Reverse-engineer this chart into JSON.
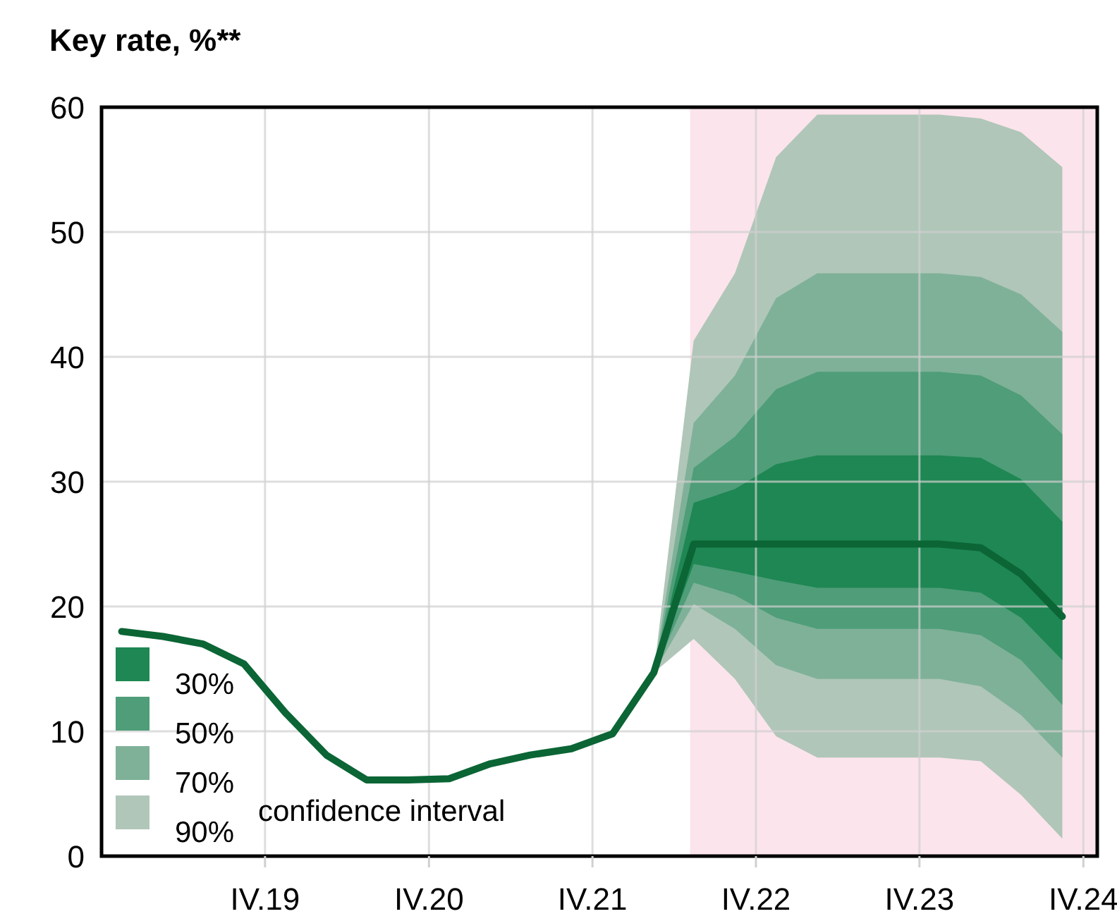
{
  "chart_data": {
    "type": "line",
    "title": "Key rate, %**",
    "legend_title": "confidence interval",
    "legend": "bottom left",
    "grid": true,
    "xlim": [
      "2018-10-01",
      "2024-11-01"
    ],
    "xticks": [
      {
        "value": "2019-10-01",
        "label": "IV.19"
      },
      {
        "value": "2020-10-01",
        "label": "IV.20"
      },
      {
        "value": "2021-10-01",
        "label": "IV.21"
      },
      {
        "value": "2022-10-01",
        "label": "IV.22"
      },
      {
        "value": "2023-10-01",
        "label": "IV.23"
      },
      {
        "value": "2024-10-01",
        "label": "IV.24"
      }
    ],
    "ylim": [
      0,
      60
    ],
    "yticks": [
      0,
      10,
      20,
      30,
      40,
      50,
      60
    ],
    "bands": [
      {
        "axis": "x",
        "from": "2022-05-07",
        "to": "2024-11-01",
        "color": "#fce4ec"
      }
    ],
    "series": [
      {
        "name": "90%",
        "type": "area",
        "color": "#b0c6b9",
        "x": [
          "2022-02-15",
          "2022-05-15",
          "2022-08-15",
          "2022-11-15",
          "2023-02-15",
          "2023-05-15",
          "2023-08-15",
          "2023-11-15",
          "2024-02-15",
          "2024-05-15",
          "2024-08-15"
        ],
        "values": [
          null,
          null,
          null,
          null,
          null,
          null,
          null,
          null,
          null,
          null,
          null
        ],
        "lower": [
          14.7,
          17.4,
          14.2,
          9.6,
          7.9,
          7.9,
          7.9,
          7.9,
          7.6,
          4.9,
          1.4
        ],
        "upper": [
          14.7,
          41.3,
          46.7,
          56.0,
          59.4,
          59.4,
          59.4,
          59.4,
          59.1,
          58.0,
          55.2
        ]
      },
      {
        "name": "70%",
        "type": "area",
        "color": "#7fb198",
        "x": [
          "2022-02-15",
          "2022-05-15",
          "2022-08-15",
          "2022-11-15",
          "2023-02-15",
          "2023-05-15",
          "2023-08-15",
          "2023-11-15",
          "2024-02-15",
          "2024-05-15",
          "2024-08-15"
        ],
        "values": [
          null,
          null,
          null,
          null,
          null,
          null,
          null,
          null,
          null,
          null,
          null
        ],
        "lower": [
          14.7,
          20.2,
          18.2,
          15.3,
          14.2,
          14.2,
          14.2,
          14.2,
          13.6,
          11.3,
          7.9
        ],
        "upper": [
          14.7,
          34.7,
          38.5,
          44.7,
          46.7,
          46.7,
          46.7,
          46.7,
          46.4,
          45.0,
          42.0
        ]
      },
      {
        "name": "50%",
        "type": "area",
        "color": "#4f9d79",
        "x": [
          "2022-02-15",
          "2022-05-15",
          "2022-08-15",
          "2022-11-15",
          "2023-02-15",
          "2023-05-15",
          "2023-08-15",
          "2023-11-15",
          "2024-02-15",
          "2024-05-15",
          "2024-08-15"
        ],
        "values": [
          null,
          null,
          null,
          null,
          null,
          null,
          null,
          null,
          null,
          null,
          null
        ],
        "lower": [
          14.7,
          21.9,
          20.9,
          19.1,
          18.2,
          18.2,
          18.2,
          18.2,
          17.7,
          15.7,
          12.1
        ],
        "upper": [
          14.7,
          31.1,
          33.6,
          37.4,
          38.8,
          38.8,
          38.8,
          38.8,
          38.5,
          36.9,
          33.8
        ]
      },
      {
        "name": "30%",
        "type": "area",
        "color": "#1e8753",
        "x": [
          "2022-02-15",
          "2022-05-15",
          "2022-08-15",
          "2022-11-15",
          "2023-02-15",
          "2023-05-15",
          "2023-08-15",
          "2023-11-15",
          "2024-02-15",
          "2024-05-15",
          "2024-08-15"
        ],
        "values": [
          null,
          null,
          null,
          null,
          null,
          null,
          null,
          null,
          null,
          null,
          null
        ],
        "lower": [
          14.7,
          23.4,
          22.8,
          22.1,
          21.5,
          21.5,
          21.5,
          21.5,
          21.1,
          19.1,
          15.7
        ],
        "upper": [
          14.7,
          28.3,
          29.4,
          31.4,
          32.1,
          32.1,
          32.1,
          32.1,
          31.9,
          30.2,
          26.8
        ]
      },
      {
        "type": "line",
        "color": "#0b6535",
        "x": [
          "2018-11-15",
          "2019-02-15",
          "2019-05-15",
          "2019-08-15",
          "2019-11-15",
          "2020-02-15",
          "2020-05-15",
          "2020-08-15",
          "2020-11-15",
          "2021-02-15",
          "2021-05-15",
          "2021-08-15",
          "2021-11-15",
          "2022-02-15",
          "2022-05-15",
          "2022-08-15",
          "2022-11-15",
          "2023-02-15",
          "2023-05-15",
          "2023-08-15",
          "2023-11-15",
          "2024-02-15",
          "2024-05-15",
          "2024-08-15"
        ],
        "values": [
          18.0,
          17.6,
          17.0,
          15.4,
          11.5,
          8.1,
          6.1,
          6.1,
          6.2,
          7.4,
          8.1,
          8.6,
          9.8,
          14.7,
          25.0,
          25.0,
          25.0,
          25.0,
          25.0,
          25.0,
          25.0,
          24.7,
          22.6,
          19.2
        ]
      }
    ]
  }
}
